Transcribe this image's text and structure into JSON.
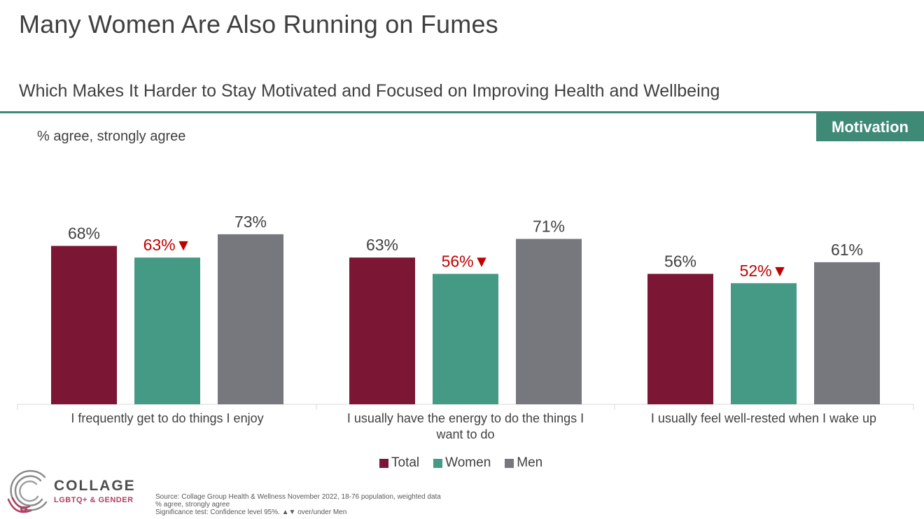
{
  "header": {
    "title": "Many Women Are Also Running on Fumes",
    "subtitle": "Which Makes It Harder to Stay Motivated and Focused on Improving Health and Wellbeing",
    "badge": "Motivation",
    "measure_label": "% agree, strongly agree"
  },
  "colors": {
    "total": "#7b1734",
    "women": "#459a85",
    "men": "#76787e",
    "significance_marker": "#c00000",
    "accent": "#3f8a77"
  },
  "chart_data": {
    "type": "bar",
    "categories": [
      "I frequently get to do things I enjoy",
      "I usually have the energy to do the things I want to do",
      "I usually feel well-rested when I wake up"
    ],
    "series": [
      {
        "name": "Total",
        "values": [
          68,
          63,
          56
        ]
      },
      {
        "name": "Women",
        "values": [
          63,
          56,
          52
        ]
      },
      {
        "name": "Men",
        "values": [
          73,
          71,
          61
        ]
      }
    ],
    "value_suffix": "%",
    "significance": {
      "series": "Women",
      "marker": "▼",
      "flags": [
        true,
        true,
        true
      ]
    },
    "ylim": [
      0,
      100
    ],
    "grid": false,
    "legend_position": "bottom"
  },
  "legend": [
    {
      "label": "Total"
    },
    {
      "label": "Women"
    },
    {
      "label": "Men"
    }
  ],
  "logo": {
    "name": "COLLAGE",
    "tagline": "LGBTQ+ & GENDER"
  },
  "footer": {
    "lines": [
      "Source: Collage Group Health & Wellness November 2022, 18-76 population, weighted data",
      "% agree, strongly agree",
      "Significance test: Confidence level 95%. ▲▼ over/under Men"
    ]
  }
}
